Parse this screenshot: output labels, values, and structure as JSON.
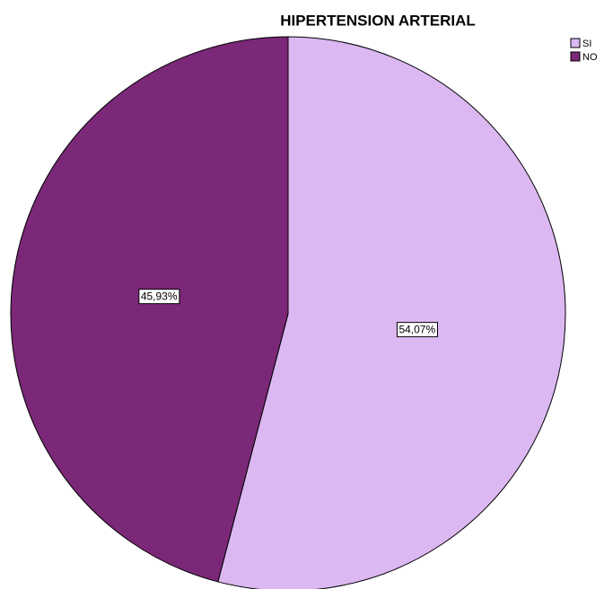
{
  "chart_data": {
    "type": "pie",
    "title": "HIPERTENSION ARTERIAL",
    "categories": [
      "SI",
      "NO"
    ],
    "values": [
      54.07,
      45.93
    ],
    "value_labels": [
      "54,07%",
      "45,93%"
    ],
    "colors": [
      "#dcb8f2",
      "#7a2877"
    ],
    "legend": "top-right"
  }
}
